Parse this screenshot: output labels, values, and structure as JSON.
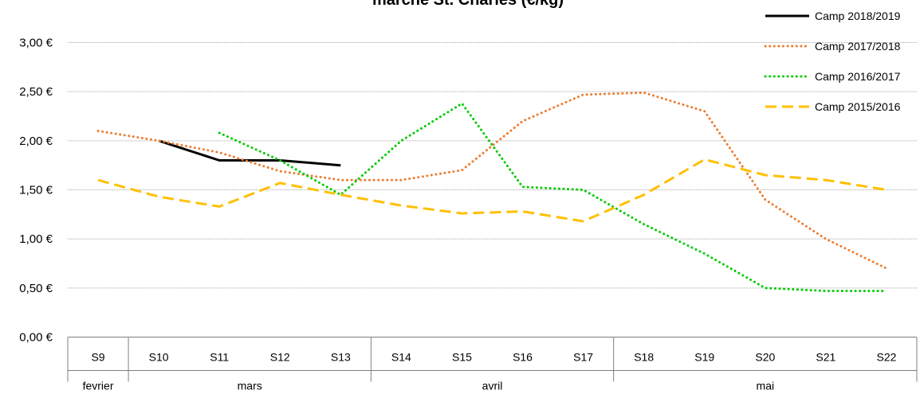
{
  "chart_data": {
    "type": "line",
    "title": "marché St. Charles (€/kg)",
    "categories": [
      "S9",
      "S10",
      "S11",
      "S12",
      "S13",
      "S14",
      "S15",
      "S16",
      "S17",
      "S18",
      "S19",
      "S20",
      "S21",
      "S22"
    ],
    "month_groups": [
      {
        "label": "fevrier",
        "start": 0,
        "end": 0
      },
      {
        "label": "mars",
        "start": 1,
        "end": 4
      },
      {
        "label": "avril",
        "start": 5,
        "end": 8
      },
      {
        "label": "mai",
        "start": 9,
        "end": 13
      }
    ],
    "yticks": [
      "0,00 €",
      "0,50 €",
      "1,00 €",
      "1,50 €",
      "2,00 €",
      "2,50 €",
      "3,00 €"
    ],
    "ylim": [
      0,
      3
    ],
    "grid": true,
    "legend_position": "top-right",
    "series": [
      {
        "name": "Camp 2018/2019",
        "color": "#000000",
        "style": "solid",
        "values": [
          null,
          2.0,
          1.8,
          1.8,
          1.75,
          null,
          null,
          null,
          null,
          null,
          null,
          null,
          null,
          null
        ]
      },
      {
        "name": "Camp 2017/2018",
        "color": "#ed7d31",
        "style": "dotted",
        "values": [
          2.1,
          2.0,
          1.88,
          1.69,
          1.6,
          1.6,
          1.7,
          2.2,
          2.47,
          2.49,
          2.3,
          1.4,
          1.0,
          0.7
        ]
      },
      {
        "name": "Camp 2016/2017",
        "color": "#00cc00",
        "style": "dotted",
        "values": [
          null,
          null,
          2.08,
          1.8,
          1.45,
          2.0,
          2.38,
          1.53,
          1.5,
          1.15,
          0.85,
          0.5,
          0.47,
          0.47
        ]
      },
      {
        "name": "Camp 2015/2016",
        "color": "#ffc000",
        "style": "dashed",
        "values": [
          1.6,
          1.43,
          1.33,
          1.57,
          1.45,
          1.34,
          1.26,
          1.28,
          1.18,
          1.45,
          1.81,
          1.65,
          1.6,
          1.5
        ]
      }
    ]
  }
}
